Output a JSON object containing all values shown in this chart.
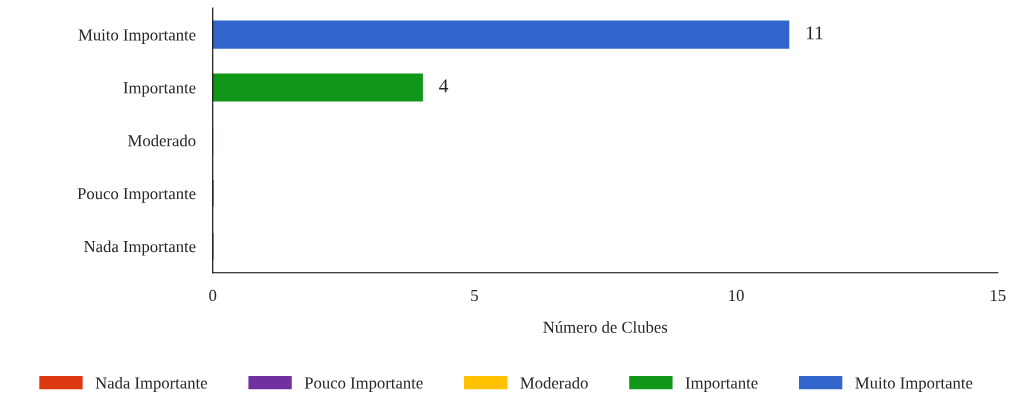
{
  "chart_data": {
    "type": "bar",
    "orientation": "horizontal",
    "xlabel": "Número de Clubes",
    "categories": [
      "Muito Importante",
      "Importante",
      "Moderado",
      "Pouco Importante",
      "Nada Importante"
    ],
    "series": [
      {
        "name": "Nada Importante",
        "color": "#dc3912",
        "values": [
          null,
          null,
          null,
          null,
          0
        ]
      },
      {
        "name": "Pouco Importante",
        "color": "#7030a0",
        "values": [
          null,
          null,
          null,
          0,
          null
        ]
      },
      {
        "name": "Moderado",
        "color": "#ffc000",
        "values": [
          null,
          null,
          0,
          null,
          null
        ]
      },
      {
        "name": "Importante",
        "color": "#109618",
        "values": [
          null,
          4,
          null,
          null,
          null
        ],
        "value_labels": [
          null,
          "4",
          null,
          null,
          null
        ]
      },
      {
        "name": "Muito Importante",
        "color": "#3366cc",
        "values": [
          11,
          null,
          null,
          null,
          null
        ],
        "value_labels": [
          "11",
          null,
          null,
          null,
          null
        ]
      }
    ],
    "xlim": [
      0,
      15
    ],
    "xticks": [
      0,
      5,
      10,
      15
    ],
    "grid": false,
    "legend": "bottom"
  }
}
